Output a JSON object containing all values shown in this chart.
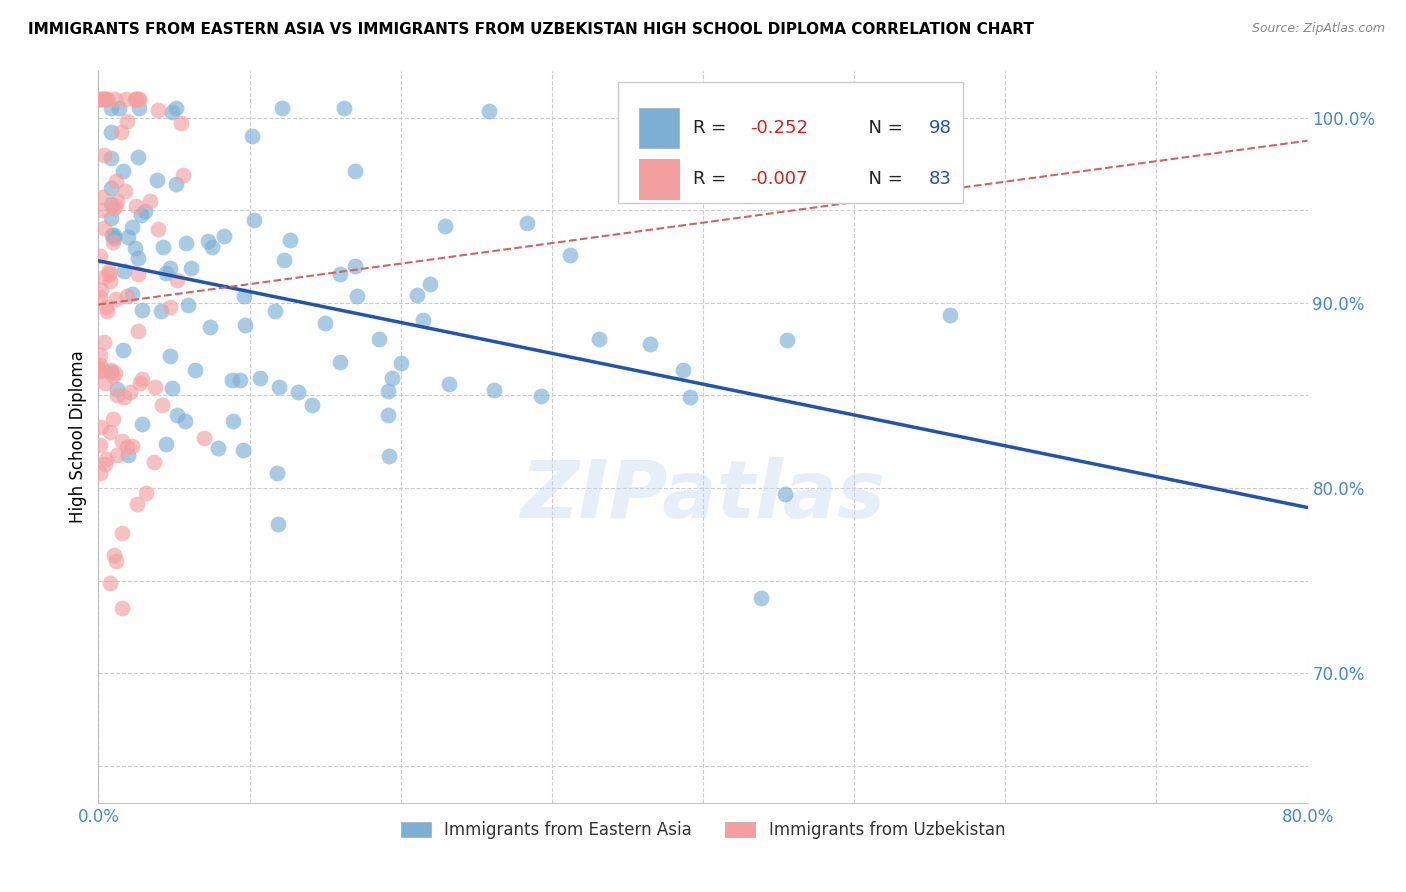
{
  "title": "IMMIGRANTS FROM EASTERN ASIA VS IMMIGRANTS FROM UZBEKISTAN HIGH SCHOOL DIPLOMA CORRELATION CHART",
  "source": "Source: ZipAtlas.com",
  "ylabel": "High School Diploma",
  "xlim": [
    0.0,
    0.8
  ],
  "ylim": [
    0.63,
    1.025
  ],
  "x_ticks": [
    0.0,
    0.1,
    0.2,
    0.3,
    0.4,
    0.5,
    0.6,
    0.7,
    0.8
  ],
  "x_tick_labels": [
    "0.0%",
    "",
    "",
    "",
    "",
    "",
    "",
    "",
    "80.0%"
  ],
  "y_ticks": [
    0.65,
    0.7,
    0.75,
    0.8,
    0.85,
    0.9,
    0.95,
    1.0
  ],
  "y_tick_labels": [
    "",
    "70.0%",
    "",
    "80.0%",
    "",
    "90.0%",
    "",
    "100.0%"
  ],
  "R_eastern_asia": -0.252,
  "N_eastern_asia": 98,
  "R_uzbekistan": -0.007,
  "N_uzbekistan": 83,
  "color_eastern": "#7BAFD4",
  "color_uzbekistan": "#F4A0A0",
  "trendline_eastern_color": "#2255AA",
  "trendline_uzbekistan_color": "#CC6666",
  "watermark": "ZIPatlas",
  "legend_label_eastern": "Immigrants from Eastern Asia",
  "legend_label_uzbekistan": "Immigrants from Uzbekistan",
  "seed_eastern": 42,
  "seed_uzbekistan": 99
}
